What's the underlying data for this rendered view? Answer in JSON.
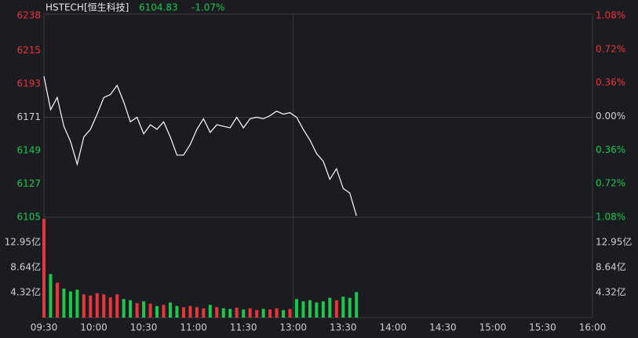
{
  "header": {
    "title": "HSTECH[恒生科技]",
    "last_price": 6104.83,
    "change": {
      "value": -1.07,
      "label": "-1.07%"
    }
  },
  "chart_data": [
    {
      "type": "line",
      "prev_close": 6171,
      "x_divider": 150,
      "up_color": "#e8353b",
      "down_color": "#1ec74a",
      "xlim": [
        0,
        330
      ],
      "x": [
        0,
        4,
        8,
        12,
        16,
        20,
        24,
        28,
        32,
        36,
        40,
        44,
        48,
        52,
        56,
        60,
        64,
        68,
        72,
        76,
        80,
        84,
        88,
        92,
        96,
        100,
        104,
        108,
        112,
        116,
        120,
        124,
        128,
        132,
        136,
        140,
        144,
        148,
        152,
        156,
        160,
        164,
        168,
        172,
        176,
        180,
        184,
        188
      ],
      "series": [
        {
          "name": "HSTECH",
          "color": "#ffffff",
          "values": [
            6198,
            6176,
            6184,
            6165,
            6155,
            6140,
            6158,
            6163,
            6173,
            6184,
            6186,
            6192,
            6181,
            6168,
            6171,
            6160,
            6166,
            6163,
            6168,
            6158,
            6146,
            6146,
            6153,
            6163,
            6170,
            6161,
            6166,
            6165,
            6164,
            6171,
            6164,
            6170,
            6171,
            6170,
            6172,
            6175,
            6173,
            6174,
            6171,
            6163,
            6156,
            6147,
            6142,
            6130,
            6137,
            6124,
            6121,
            6106
          ]
        }
      ],
      "ylim": [
        6105,
        6238
      ],
      "yticks": [
        6238,
        6215,
        6193,
        6171,
        6149,
        6127,
        6105
      ],
      "y2lim": [
        -1.08,
        1.08
      ],
      "y2ticks": [
        {
          "value": 1.08,
          "label": "1.08%"
        },
        {
          "value": 0.72,
          "label": "0.72%"
        },
        {
          "value": 0.36,
          "label": "0.36%"
        },
        {
          "value": 0,
          "label": "0.00%"
        },
        {
          "value": -0.36,
          "label": "0.36%"
        },
        {
          "value": -0.72,
          "label": "0.72%"
        },
        {
          "value": -1.08,
          "label": "1.08%"
        }
      ]
    },
    {
      "type": "bar",
      "xlim": [
        0,
        330
      ],
      "x": [
        0,
        4,
        8,
        12,
        16,
        20,
        24,
        28,
        32,
        36,
        40,
        44,
        48,
        52,
        56,
        60,
        64,
        68,
        72,
        76,
        80,
        84,
        88,
        92,
        96,
        100,
        104,
        108,
        112,
        116,
        120,
        124,
        128,
        132,
        136,
        140,
        144,
        148,
        152,
        156,
        160,
        164,
        168,
        172,
        176,
        180,
        184,
        188
      ],
      "values": [
        17.0,
        7.5,
        6.0,
        5.0,
        4.5,
        4.8,
        4.0,
        3.8,
        4.2,
        4.0,
        3.5,
        4.0,
        3.2,
        3.0,
        2.5,
        2.8,
        2.4,
        2.0,
        2.2,
        2.6,
        2.0,
        1.8,
        2.0,
        1.8,
        1.6,
        2.2,
        1.8,
        1.6,
        1.5,
        1.7,
        1.4,
        1.6,
        1.3,
        1.5,
        1.4,
        1.6,
        1.3,
        1.5,
        3.2,
        2.8,
        3.0,
        2.6,
        2.8,
        3.4,
        3.0,
        3.6,
        3.4,
        4.4
      ],
      "ylim": [
        0,
        17.28
      ],
      "yticks": [
        {
          "value": 12.95,
          "label": "12.95亿"
        },
        {
          "value": 8.64,
          "label": "8.64亿"
        },
        {
          "value": 4.32,
          "label": "4.32亿"
        }
      ],
      "xticks": [
        {
          "value": 0,
          "label": "09:30"
        },
        {
          "value": 30,
          "label": "10:00"
        },
        {
          "value": 60,
          "label": "10:30"
        },
        {
          "value": 90,
          "label": "11:00"
        },
        {
          "value": 120,
          "label": "11:30"
        },
        {
          "value": 150,
          "label": "13:00"
        },
        {
          "value": 180,
          "label": "13:30"
        },
        {
          "value": 210,
          "label": "14:00"
        },
        {
          "value": 240,
          "label": "14:30"
        },
        {
          "value": 270,
          "label": "15:00"
        },
        {
          "value": 300,
          "label": "15:30"
        },
        {
          "value": 330,
          "label": "16:00"
        }
      ]
    }
  ]
}
